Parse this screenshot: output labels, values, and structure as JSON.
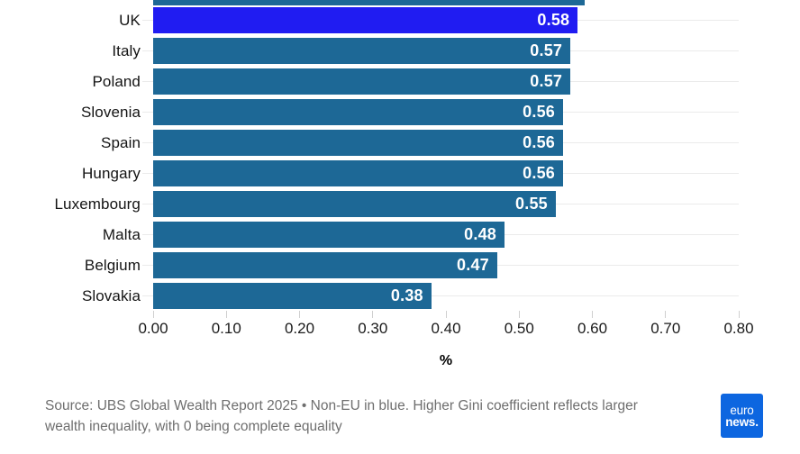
{
  "chart_data": {
    "type": "bar",
    "orientation": "horizontal",
    "title": "",
    "categories": [
      "UK",
      "Italy",
      "Poland",
      "Slovenia",
      "Spain",
      "Hungary",
      "Luxembourg",
      "Malta",
      "Belgium",
      "Slovakia"
    ],
    "values": [
      0.58,
      0.57,
      0.57,
      0.56,
      0.56,
      0.56,
      0.55,
      0.48,
      0.47,
      0.38
    ],
    "value_labels": [
      "0.58",
      "0.57",
      "0.57",
      "0.56",
      "0.56",
      "0.56",
      "0.55",
      "0.48",
      "0.47",
      "0.38"
    ],
    "highlighted_categories": [
      "UK"
    ],
    "cropped_top_bar": {
      "visible": true,
      "estimated_value": 0.59
    },
    "xlabel": "%",
    "xlim": [
      0,
      0.8
    ],
    "x_ticks": [
      "0.00",
      "0.10",
      "0.20",
      "0.30",
      "0.40",
      "0.50",
      "0.60",
      "0.70",
      "0.80"
    ],
    "grid": "horizontal-row-lines",
    "legend": "none"
  },
  "colors": {
    "bar_default": "#1d6896",
    "bar_highlight": "#201cf2",
    "value_label": "#ffffff",
    "gridline": "#ebebeb",
    "tick_mark": "#cfcfcf",
    "axis_text": "#1a1a1a",
    "footer_text": "#6e6e6e",
    "logo_bg": "#0d66e0",
    "background": "#ffffff"
  },
  "footer": {
    "source_text": "Source: UBS Global Wealth Report 2025 • Non-EU in blue. Higher Gini coefficient reflects larger wealth inequality, with 0 being complete equality"
  },
  "logo": {
    "line1": "euro",
    "line2": "news."
  }
}
